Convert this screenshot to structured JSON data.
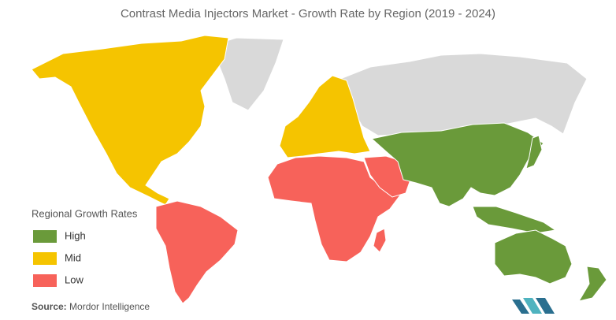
{
  "title": "Contrast Media Injectors Market  - Growth Rate by Region (2019 - 2024)",
  "legend": {
    "title": "Regional Growth Rates",
    "items": [
      {
        "label": "High",
        "color": "#6a9a3a"
      },
      {
        "label": "Mid",
        "color": "#f5c400"
      },
      {
        "label": "Low",
        "color": "#f7625a"
      }
    ]
  },
  "source": {
    "label": "Source:",
    "text": "Mordor Intelligence"
  }
}
